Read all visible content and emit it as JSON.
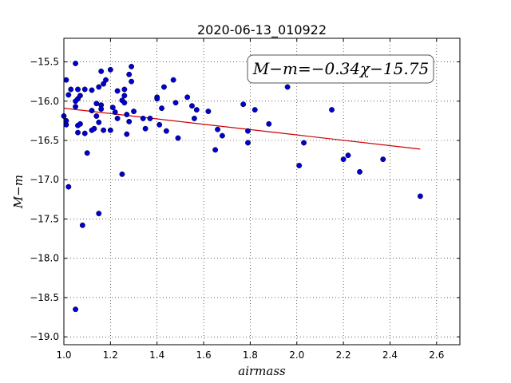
{
  "chart_data": {
    "type": "scatter",
    "title": "2020-06-13_010922",
    "xlabel": "airmass",
    "ylabel": "M−m",
    "xlim": [
      1.0,
      2.7
    ],
    "ylim": [
      -19.1,
      -15.2
    ],
    "x_ticks": [
      "1.0",
      "1.2",
      "1.4",
      "1.6",
      "1.8",
      "2.0",
      "2.2",
      "2.4",
      "2.6"
    ],
    "y_ticks": [
      "−15.5",
      "−16.0",
      "−16.5",
      "−17.0",
      "−17.5",
      "−18.0",
      "−18.5",
      "−19.0"
    ],
    "grid": true,
    "annotation": "M−m=−0.34χ−15.75",
    "marker_color": "#0000cc",
    "fit_line_color": "#cc0000",
    "fit": {
      "slope": -0.34,
      "intercept": -15.75,
      "x_range": [
        1.0,
        2.53
      ]
    },
    "points": [
      [
        1.0,
        -16.19
      ],
      [
        1.01,
        -16.25
      ],
      [
        1.01,
        -16.3
      ],
      [
        1.01,
        -15.73
      ],
      [
        1.02,
        -15.92
      ],
      [
        1.02,
        -17.09
      ],
      [
        1.03,
        -15.85
      ],
      [
        1.05,
        -15.52
      ],
      [
        1.05,
        -16.0
      ],
      [
        1.05,
        -16.07
      ],
      [
        1.05,
        -18.65
      ],
      [
        1.06,
        -15.85
      ],
      [
        1.06,
        -15.97
      ],
      [
        1.06,
        -16.31
      ],
      [
        1.06,
        -16.4
      ],
      [
        1.07,
        -15.93
      ],
      [
        1.07,
        -16.29
      ],
      [
        1.08,
        -17.58
      ],
      [
        1.09,
        -15.85
      ],
      [
        1.09,
        -16.41
      ],
      [
        1.1,
        -16.66
      ],
      [
        1.12,
        -15.86
      ],
      [
        1.12,
        -16.12
      ],
      [
        1.12,
        -16.37
      ],
      [
        1.13,
        -16.35
      ],
      [
        1.14,
        -16.03
      ],
      [
        1.14,
        -16.19
      ],
      [
        1.15,
        -16.27
      ],
      [
        1.15,
        -17.43
      ],
      [
        1.15,
        -15.82
      ],
      [
        1.16,
        -16.05
      ],
      [
        1.16,
        -16.1
      ],
      [
        1.16,
        -15.62
      ],
      [
        1.17,
        -15.78
      ],
      [
        1.17,
        -16.37
      ],
      [
        1.18,
        -15.73
      ],
      [
        1.2,
        -15.6
      ],
      [
        1.2,
        -16.37
      ],
      [
        1.21,
        -16.08
      ],
      [
        1.22,
        -16.14
      ],
      [
        1.23,
        -16.22
      ],
      [
        1.23,
        -15.87
      ],
      [
        1.25,
        -16.93
      ],
      [
        1.25,
        -15.99
      ],
      [
        1.26,
        -15.93
      ],
      [
        1.26,
        -15.85
      ],
      [
        1.26,
        -16.02
      ],
      [
        1.27,
        -16.42
      ],
      [
        1.27,
        -16.17
      ],
      [
        1.28,
        -16.26
      ],
      [
        1.28,
        -15.66
      ],
      [
        1.29,
        -15.56
      ],
      [
        1.29,
        -15.75
      ],
      [
        1.3,
        -16.13
      ],
      [
        1.34,
        -16.22
      ],
      [
        1.35,
        -16.35
      ],
      [
        1.37,
        -16.22
      ],
      [
        1.4,
        -15.95
      ],
      [
        1.4,
        -15.97
      ],
      [
        1.41,
        -16.3
      ],
      [
        1.42,
        -16.09
      ],
      [
        1.43,
        -15.82
      ],
      [
        1.44,
        -16.38
      ],
      [
        1.47,
        -15.73
      ],
      [
        1.48,
        -16.02
      ],
      [
        1.49,
        -16.47
      ],
      [
        1.53,
        -15.95
      ],
      [
        1.55,
        -16.06
      ],
      [
        1.56,
        -16.22
      ],
      [
        1.57,
        -16.11
      ],
      [
        1.62,
        -16.13
      ],
      [
        1.65,
        -16.62
      ],
      [
        1.66,
        -16.36
      ],
      [
        1.68,
        -16.44
      ],
      [
        1.77,
        -16.04
      ],
      [
        1.79,
        -16.38
      ],
      [
        1.79,
        -16.53
      ],
      [
        1.82,
        -16.11
      ],
      [
        1.88,
        -16.29
      ],
      [
        1.96,
        -15.82
      ],
      [
        2.01,
        -16.82
      ],
      [
        2.03,
        -16.53
      ],
      [
        2.15,
        -16.11
      ],
      [
        2.2,
        -16.74
      ],
      [
        2.22,
        -16.69
      ],
      [
        2.27,
        -16.9
      ],
      [
        2.37,
        -16.74
      ],
      [
        2.53,
        -17.21
      ]
    ]
  }
}
